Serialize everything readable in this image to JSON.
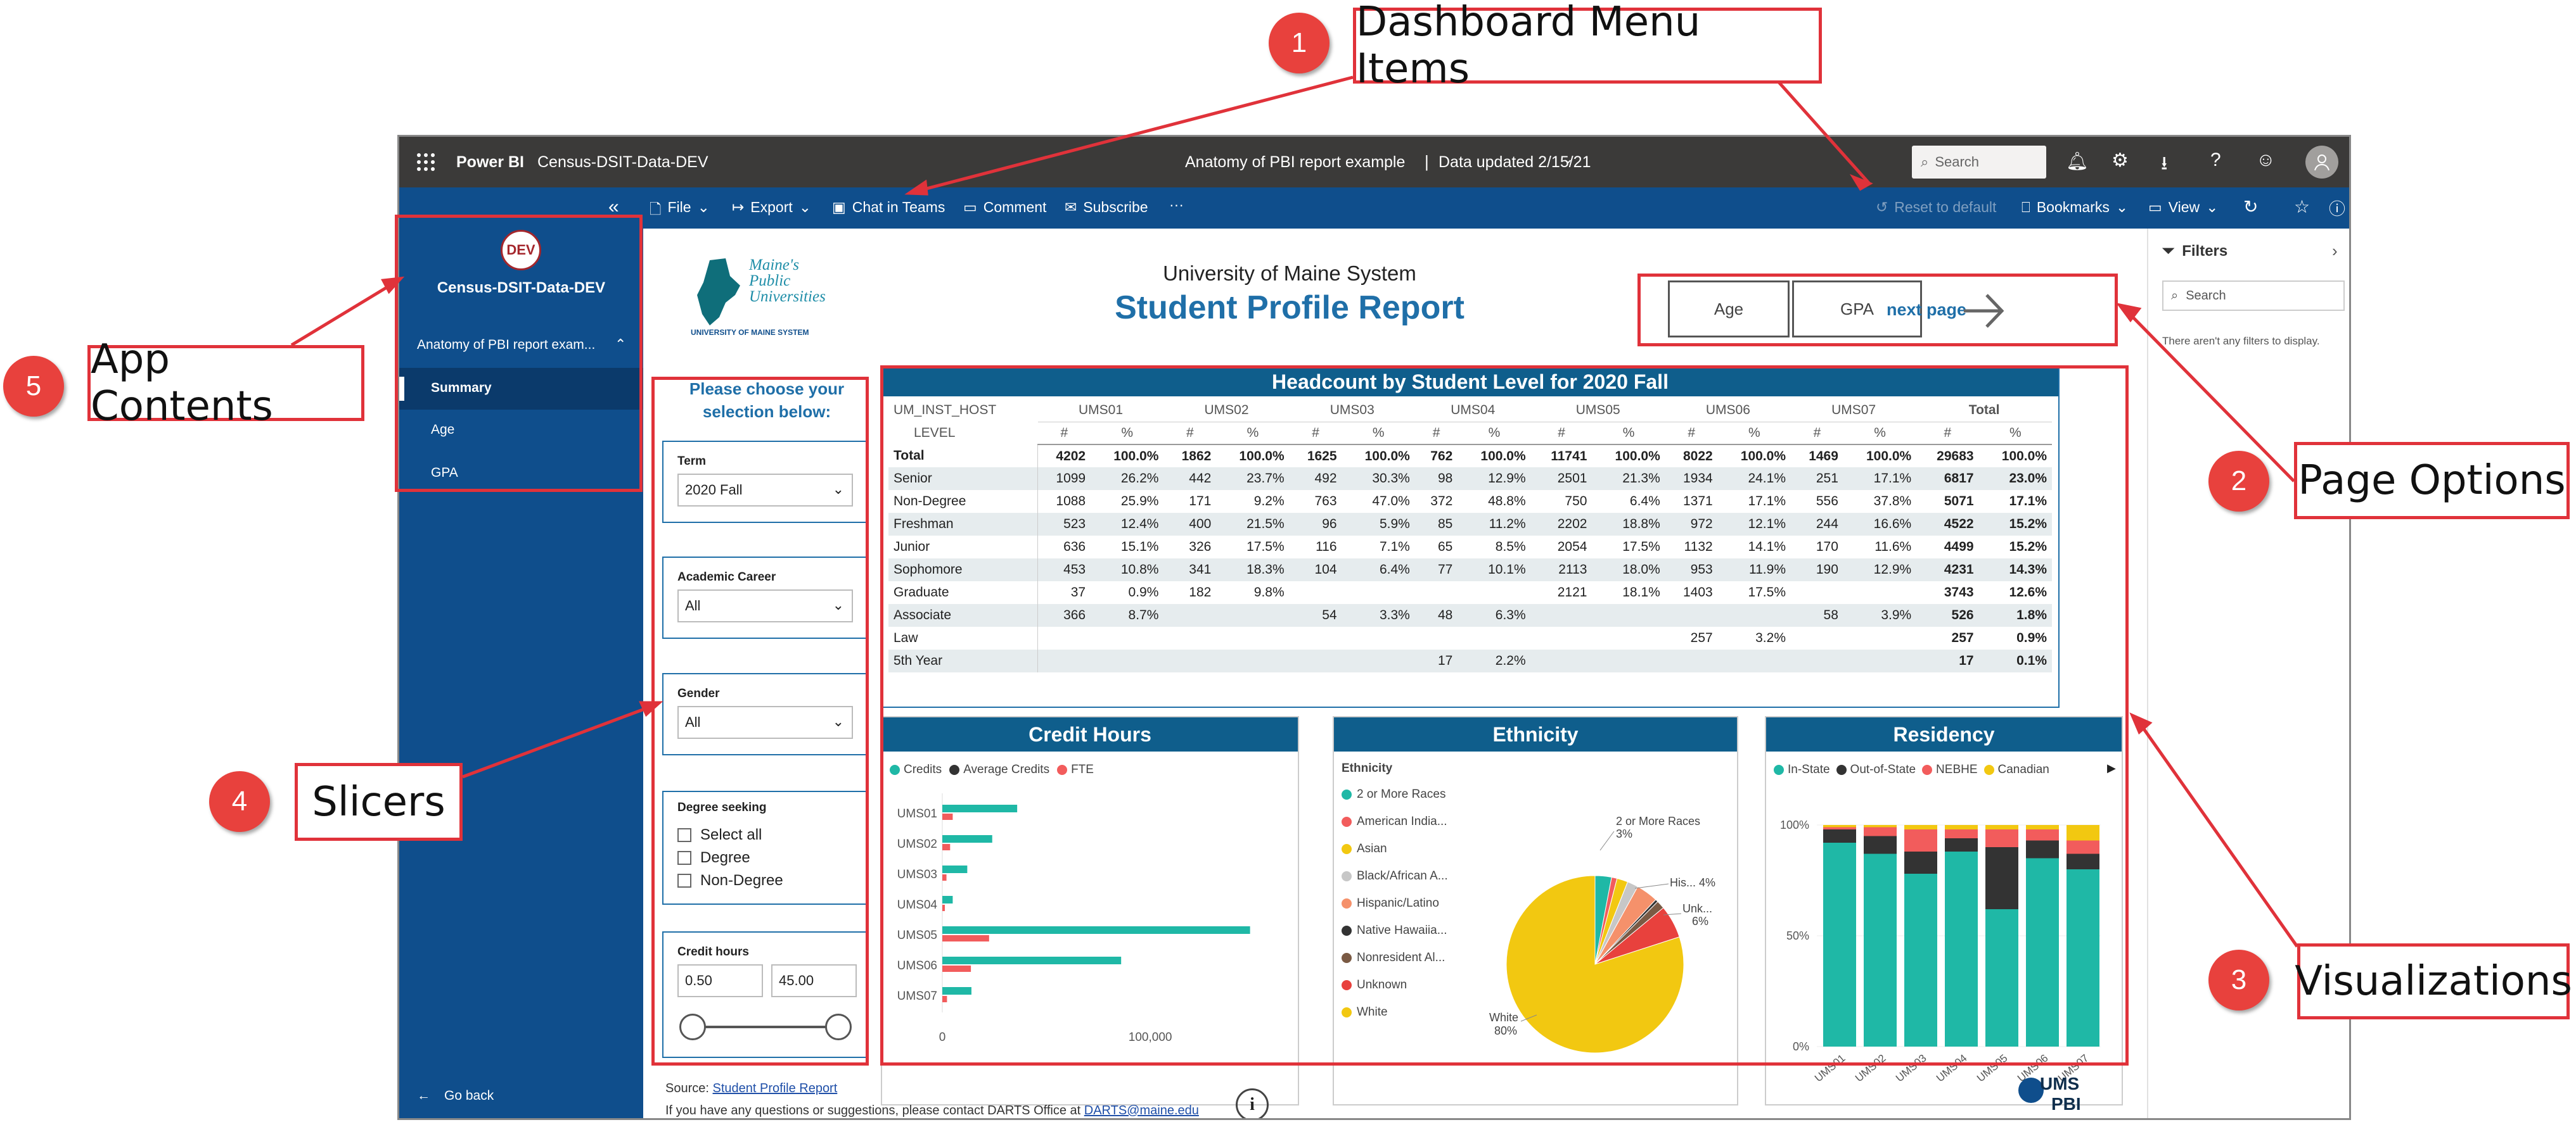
{
  "topbar": {
    "brand": "Power BI",
    "workspace": "Census-DSIT-Data-DEV",
    "report_title": "Anatomy of PBI report example",
    "data_updated": "Data updated 2/15/21",
    "search_placeholder": "Search"
  },
  "cmdbar": {
    "file": "File",
    "export": "Export",
    "chat": "Chat in Teams",
    "comment": "Comment",
    "subscribe": "Subscribe",
    "more": "···",
    "reset": "Reset to default",
    "bookmarks": "Bookmarks",
    "view": "View"
  },
  "leftnav": {
    "badge": "DEV",
    "app_name": "Census-DSIT-Data-DEV",
    "section": "Anatomy of PBI report exam...",
    "items": [
      {
        "label": "Summary"
      },
      {
        "label": "Age"
      },
      {
        "label": "GPA"
      }
    ],
    "go_back": "Go back"
  },
  "header": {
    "logo_line1": "Maine's",
    "logo_line2": "Public",
    "logo_line3": "Universities",
    "logo_sub": "UNIVERSITY OF MAINE SYSTEM",
    "system": "University of Maine System",
    "title": "Student Profile Report",
    "btn_age": "Age",
    "btn_gpa": "GPA",
    "next_page": "next page"
  },
  "slicers": {
    "prompt": "Please choose your selection below:",
    "term_label": "Term",
    "term_value": "2020 Fall",
    "career_label": "Academic Career",
    "career_value": "All",
    "gender_label": "Gender",
    "gender_value": "All",
    "degree_label": "Degree seeking",
    "degree_options": [
      "Select all",
      "Degree",
      "Non-Degree"
    ],
    "credit_label": "Credit hours",
    "credit_min": "0.50",
    "credit_max": "45.00"
  },
  "headcount": {
    "title": "Headcount by Student Level for 2020 Fall",
    "host_label": "UM_INST_HOST",
    "level_label": "LEVEL",
    "campuses": [
      "UMS01",
      "UMS02",
      "UMS03",
      "UMS04",
      "UMS05",
      "UMS06",
      "UMS07",
      "Total"
    ],
    "hash": "#",
    "pct": "%",
    "rows": [
      [
        "Total",
        "4202",
        "100.0%",
        "1862",
        "100.0%",
        "1625",
        "100.0%",
        "762",
        "100.0%",
        "11741",
        "100.0%",
        "8022",
        "100.0%",
        "1469",
        "100.0%",
        "29683",
        "100.0%"
      ],
      [
        "Senior",
        "1099",
        "26.2%",
        "442",
        "23.7%",
        "492",
        "30.3%",
        "98",
        "12.9%",
        "2501",
        "21.3%",
        "1934",
        "24.1%",
        "251",
        "17.1%",
        "6817",
        "23.0%"
      ],
      [
        "Non-Degree",
        "1088",
        "25.9%",
        "171",
        "9.2%",
        "763",
        "47.0%",
        "372",
        "48.8%",
        "750",
        "6.4%",
        "1371",
        "17.1%",
        "556",
        "37.8%",
        "5071",
        "17.1%"
      ],
      [
        "Freshman",
        "523",
        "12.4%",
        "400",
        "21.5%",
        "96",
        "5.9%",
        "85",
        "11.2%",
        "2202",
        "18.8%",
        "972",
        "12.1%",
        "244",
        "16.6%",
        "4522",
        "15.2%"
      ],
      [
        "Junior",
        "636",
        "15.1%",
        "326",
        "17.5%",
        "116",
        "7.1%",
        "65",
        "8.5%",
        "2054",
        "17.5%",
        "1132",
        "14.1%",
        "170",
        "11.6%",
        "4499",
        "15.2%"
      ],
      [
        "Sophomore",
        "453",
        "10.8%",
        "341",
        "18.3%",
        "104",
        "6.4%",
        "77",
        "10.1%",
        "2113",
        "18.0%",
        "953",
        "11.9%",
        "190",
        "12.9%",
        "4231",
        "14.3%"
      ],
      [
        "Graduate",
        "37",
        "0.9%",
        "182",
        "9.8%",
        "",
        "",
        "",
        "",
        "2121",
        "18.1%",
        "1403",
        "17.5%",
        "",
        "",
        "3743",
        "12.6%"
      ],
      [
        "Associate",
        "366",
        "8.7%",
        "",
        "",
        "54",
        "3.3%",
        "48",
        "6.3%",
        "",
        "",
        "",
        "",
        "58",
        "3.9%",
        "526",
        "1.8%"
      ],
      [
        "Law",
        "",
        "",
        "",
        "",
        "",
        "",
        "",
        "",
        "",
        "",
        "257",
        "3.2%",
        "",
        "",
        "257",
        "0.9%"
      ],
      [
        "5th Year",
        "",
        "",
        "",
        "",
        "",
        "",
        "17",
        "2.2%",
        "",
        "",
        "",
        "",
        "",
        "",
        "17",
        "0.1%"
      ]
    ]
  },
  "credit_chart": {
    "title": "Credit Hours",
    "legend": [
      "Credits",
      "Average Credits",
      "FTE"
    ],
    "categories": [
      "UMS01",
      "UMS02",
      "UMS03",
      "UMS04",
      "UMS05",
      "UMS06",
      "UMS07"
    ],
    "credits": [
      36000,
      24000,
      12000,
      5000,
      148000,
      86000,
      14000
    ],
    "fte": [
      2000,
      1500,
      800,
      300,
      9000,
      5500,
      900
    ],
    "x_ticks": [
      "0",
      "100,000"
    ],
    "colors": {
      "credits": "#1fb8a6",
      "avg": "#333333",
      "fte": "#f25c5c"
    }
  },
  "ethnicity": {
    "title": "Ethnicity",
    "legend_title": "Ethnicity",
    "legend": [
      "2 or More Races",
      "American India...",
      "Asian",
      "Black/African A...",
      "Hispanic/Latino",
      "Native Hawaiia...",
      "Nonresident Al...",
      "Unknown",
      "White"
    ],
    "colors": [
      "#1fb8a6",
      "#f25c5c",
      "#f2c811",
      "#c7c7c7",
      "#f5916b",
      "#333333",
      "#7a5a44",
      "#e8413d",
      "#f2c811"
    ],
    "labels": [
      {
        "text": "2 or More Races",
        "pct": "3%"
      },
      {
        "text": "His... 4%"
      },
      {
        "text": "Unk...",
        "pct": "6%"
      },
      {
        "text": "White",
        "pct": "80%"
      }
    ],
    "slices": [
      3,
      1,
      2,
      2,
      4,
      0.5,
      1.5,
      6,
      80
    ]
  },
  "residency": {
    "title": "Residency",
    "legend": [
      "In-State",
      "Out-of-State",
      "NEBHE",
      "Canadian"
    ],
    "colors": [
      "#1fb8a6",
      "#333333",
      "#f25c5c",
      "#f2c811"
    ],
    "categories": [
      "UMS01",
      "UMS02",
      "UMS03",
      "UMS04",
      "UMS05",
      "UMS06",
      "UMS07"
    ],
    "y_ticks": [
      "100%",
      "50%",
      "0%"
    ],
    "stacks": [
      [
        92,
        6,
        1,
        1
      ],
      [
        87,
        8,
        4,
        1
      ],
      [
        78,
        10,
        10,
        2
      ],
      [
        88,
        6,
        4,
        2
      ],
      [
        62,
        28,
        8,
        2
      ],
      [
        85,
        8,
        5,
        2
      ],
      [
        80,
        7,
        6,
        7
      ]
    ]
  },
  "footer": {
    "source_label": "Source:",
    "source_link": "Student Profile Report",
    "contact": "If you have any questions or suggestions, please contact DARTS Office at",
    "email": "DARTS@maine.edu",
    "ums": "UMS",
    "pbi": "PBI"
  },
  "filters": {
    "title": "Filters",
    "search": "Search",
    "empty": "There aren't any filters to display."
  },
  "callouts": [
    {
      "num": "1",
      "text": "Dashboard Menu Items"
    },
    {
      "num": "2",
      "text": "Page Options"
    },
    {
      "num": "3",
      "text": "Visualizations"
    },
    {
      "num": "4",
      "text": "Slicers"
    },
    {
      "num": "5",
      "text": "App Contents"
    }
  ]
}
